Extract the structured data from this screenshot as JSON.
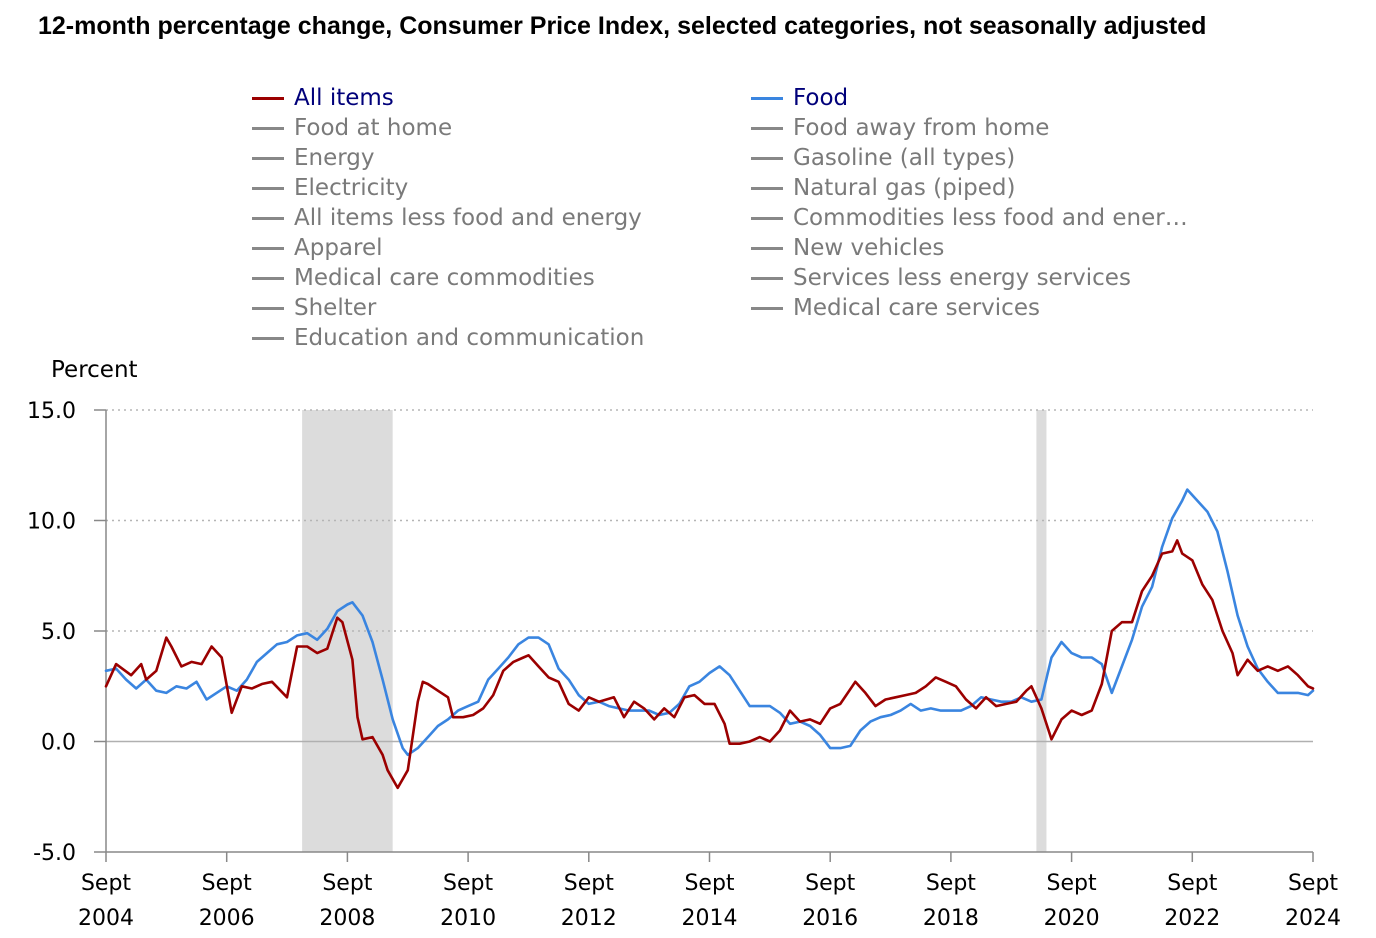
{
  "title": "12-month percentage change, Consumer Price Index, selected categories, not seasonally adjusted",
  "legend": {
    "left": [
      {
        "label": "All items",
        "color": "#9b0000",
        "active": true
      },
      {
        "label": "Food at home",
        "color": "#888888",
        "active": false
      },
      {
        "label": "Energy",
        "color": "#888888",
        "active": false
      },
      {
        "label": "Electricity",
        "color": "#888888",
        "active": false
      },
      {
        "label": "All items less food and energy",
        "color": "#888888",
        "active": false
      },
      {
        "label": "Apparel",
        "color": "#888888",
        "active": false
      },
      {
        "label": "Medical care commodities",
        "color": "#888888",
        "active": false
      },
      {
        "label": "Shelter",
        "color": "#888888",
        "active": false
      },
      {
        "label": "Education and communication",
        "color": "#888888",
        "active": false
      }
    ],
    "right": [
      {
        "label": "Food",
        "color": "#3a85e0",
        "active": true
      },
      {
        "label": "Food away from home",
        "color": "#888888",
        "active": false
      },
      {
        "label": "Gasoline (all types)",
        "color": "#888888",
        "active": false
      },
      {
        "label": "Natural gas (piped)",
        "color": "#888888",
        "active": false
      },
      {
        "label": "Commodities less food and ener…",
        "color": "#888888",
        "active": false
      },
      {
        "label": "New vehicles",
        "color": "#888888",
        "active": false
      },
      {
        "label": "Services less energy services",
        "color": "#888888",
        "active": false
      },
      {
        "label": "Medical care services",
        "color": "#888888",
        "active": false
      }
    ]
  },
  "chart_data": {
    "type": "line",
    "title": "12-month percentage change, Consumer Price Index, selected categories, not seasonally adjusted",
    "ylabel": "Percent",
    "xlabel": "",
    "ylim": [
      -5.0,
      15.0
    ],
    "y_ticks": [
      "15.0",
      "10.0",
      "5.0",
      "0.0",
      "-5.0"
    ],
    "y_tick_values": [
      15,
      10,
      5,
      0,
      -5
    ],
    "x_range": [
      "2004-09",
      "2024-09"
    ],
    "x_ticks": [
      {
        "line1": "Sept",
        "line2": "2004",
        "year": 2004
      },
      {
        "line1": "Sept",
        "line2": "2006",
        "year": 2006
      },
      {
        "line1": "Sept",
        "line2": "2008",
        "year": 2008
      },
      {
        "line1": "Sept",
        "line2": "2010",
        "year": 2010
      },
      {
        "line1": "Sept",
        "line2": "2012",
        "year": 2012
      },
      {
        "line1": "Sept",
        "line2": "2014",
        "year": 2014
      },
      {
        "line1": "Sept",
        "line2": "2016",
        "year": 2016
      },
      {
        "line1": "Sept",
        "line2": "2018",
        "year": 2018
      },
      {
        "line1": "Sept",
        "line2": "2020",
        "year": 2020
      },
      {
        "line1": "Sept",
        "line2": "2022",
        "year": 2022
      },
      {
        "line1": "Sept",
        "line2": "2024",
        "year": 2024
      }
    ],
    "recessions": [
      {
        "start": "2007-12",
        "end": "2009-06"
      },
      {
        "start": "2020-02",
        "end": "2020-04"
      }
    ],
    "grid": "horizontal dotted",
    "legend_placement": "top",
    "series": [
      {
        "name": "All items",
        "color": "#9b0000",
        "points": [
          [
            "2004-09",
            2.5
          ],
          [
            "2004-11",
            3.5
          ],
          [
            "2005-02",
            3.0
          ],
          [
            "2005-04",
            3.5
          ],
          [
            "2005-05",
            2.8
          ],
          [
            "2005-07",
            3.2
          ],
          [
            "2005-09",
            4.7
          ],
          [
            "2005-10",
            4.3
          ],
          [
            "2005-12",
            3.4
          ],
          [
            "2006-02",
            3.6
          ],
          [
            "2006-04",
            3.5
          ],
          [
            "2006-06",
            4.3
          ],
          [
            "2006-08",
            3.8
          ],
          [
            "2006-10",
            1.3
          ],
          [
            "2006-12",
            2.5
          ],
          [
            "2007-02",
            2.4
          ],
          [
            "2007-04",
            2.6
          ],
          [
            "2007-06",
            2.7
          ],
          [
            "2007-09",
            2.0
          ],
          [
            "2007-11",
            4.3
          ],
          [
            "2008-01",
            4.3
          ],
          [
            "2008-03",
            4.0
          ],
          [
            "2008-05",
            4.2
          ],
          [
            "2008-07",
            5.6
          ],
          [
            "2008-08",
            5.4
          ],
          [
            "2008-10",
            3.7
          ],
          [
            "2008-11",
            1.1
          ],
          [
            "2008-12",
            0.1
          ],
          [
            "2009-02",
            0.2
          ],
          [
            "2009-04",
            -0.6
          ],
          [
            "2009-05",
            -1.3
          ],
          [
            "2009-07",
            -2.1
          ],
          [
            "2009-09",
            -1.3
          ],
          [
            "2009-11",
            1.8
          ],
          [
            "2009-12",
            2.7
          ],
          [
            "2010-01",
            2.6
          ],
          [
            "2010-03",
            2.3
          ],
          [
            "2010-05",
            2.0
          ],
          [
            "2010-06",
            1.1
          ],
          [
            "2010-08",
            1.1
          ],
          [
            "2010-10",
            1.2
          ],
          [
            "2010-12",
            1.5
          ],
          [
            "2011-02",
            2.1
          ],
          [
            "2011-04",
            3.2
          ],
          [
            "2011-06",
            3.6
          ],
          [
            "2011-08",
            3.8
          ],
          [
            "2011-09",
            3.9
          ],
          [
            "2011-11",
            3.4
          ],
          [
            "2012-01",
            2.9
          ],
          [
            "2012-03",
            2.7
          ],
          [
            "2012-05",
            1.7
          ],
          [
            "2012-07",
            1.4
          ],
          [
            "2012-09",
            2.0
          ],
          [
            "2012-11",
            1.8
          ],
          [
            "2013-02",
            2.0
          ],
          [
            "2013-04",
            1.1
          ],
          [
            "2013-06",
            1.8
          ],
          [
            "2013-08",
            1.5
          ],
          [
            "2013-10",
            1.0
          ],
          [
            "2013-12",
            1.5
          ],
          [
            "2014-02",
            1.1
          ],
          [
            "2014-04",
            2.0
          ],
          [
            "2014-06",
            2.1
          ],
          [
            "2014-08",
            1.7
          ],
          [
            "2014-10",
            1.7
          ],
          [
            "2014-12",
            0.8
          ],
          [
            "2015-01",
            -0.1
          ],
          [
            "2015-03",
            -0.1
          ],
          [
            "2015-05",
            0.0
          ],
          [
            "2015-07",
            0.2
          ],
          [
            "2015-09",
            0.0
          ],
          [
            "2015-11",
            0.5
          ],
          [
            "2016-01",
            1.4
          ],
          [
            "2016-03",
            0.9
          ],
          [
            "2016-05",
            1.0
          ],
          [
            "2016-07",
            0.8
          ],
          [
            "2016-09",
            1.5
          ],
          [
            "2016-11",
            1.7
          ],
          [
            "2017-02",
            2.7
          ],
          [
            "2017-04",
            2.2
          ],
          [
            "2017-06",
            1.6
          ],
          [
            "2017-08",
            1.9
          ],
          [
            "2017-10",
            2.0
          ],
          [
            "2017-12",
            2.1
          ],
          [
            "2018-02",
            2.2
          ],
          [
            "2018-04",
            2.5
          ],
          [
            "2018-06",
            2.9
          ],
          [
            "2018-08",
            2.7
          ],
          [
            "2018-10",
            2.5
          ],
          [
            "2018-12",
            1.9
          ],
          [
            "2019-02",
            1.5
          ],
          [
            "2019-04",
            2.0
          ],
          [
            "2019-06",
            1.6
          ],
          [
            "2019-08",
            1.7
          ],
          [
            "2019-10",
            1.8
          ],
          [
            "2019-12",
            2.3
          ],
          [
            "2020-01",
            2.5
          ],
          [
            "2020-03",
            1.5
          ],
          [
            "2020-05",
            0.1
          ],
          [
            "2020-07",
            1.0
          ],
          [
            "2020-09",
            1.4
          ],
          [
            "2020-11",
            1.2
          ],
          [
            "2021-01",
            1.4
          ],
          [
            "2021-03",
            2.6
          ],
          [
            "2021-05",
            5.0
          ],
          [
            "2021-07",
            5.4
          ],
          [
            "2021-09",
            5.4
          ],
          [
            "2021-11",
            6.8
          ],
          [
            "2022-01",
            7.5
          ],
          [
            "2022-03",
            8.5
          ],
          [
            "2022-05",
            8.6
          ],
          [
            "2022-06",
            9.1
          ],
          [
            "2022-07",
            8.5
          ],
          [
            "2022-09",
            8.2
          ],
          [
            "2022-11",
            7.1
          ],
          [
            "2023-01",
            6.4
          ],
          [
            "2023-03",
            5.0
          ],
          [
            "2023-05",
            4.0
          ],
          [
            "2023-06",
            3.0
          ],
          [
            "2023-08",
            3.7
          ],
          [
            "2023-10",
            3.2
          ],
          [
            "2023-12",
            3.4
          ],
          [
            "2024-02",
            3.2
          ],
          [
            "2024-04",
            3.4
          ],
          [
            "2024-06",
            3.0
          ],
          [
            "2024-08",
            2.5
          ],
          [
            "2024-09",
            2.4
          ]
        ]
      },
      {
        "name": "Food",
        "color": "#3a85e0",
        "points": [
          [
            "2004-09",
            3.2
          ],
          [
            "2004-11",
            3.3
          ],
          [
            "2005-01",
            2.8
          ],
          [
            "2005-03",
            2.4
          ],
          [
            "2005-05",
            2.8
          ],
          [
            "2005-07",
            2.3
          ],
          [
            "2005-09",
            2.2
          ],
          [
            "2005-11",
            2.5
          ],
          [
            "2006-01",
            2.4
          ],
          [
            "2006-03",
            2.7
          ],
          [
            "2006-05",
            1.9
          ],
          [
            "2006-07",
            2.2
          ],
          [
            "2006-09",
            2.5
          ],
          [
            "2006-11",
            2.3
          ],
          [
            "2007-01",
            2.8
          ],
          [
            "2007-03",
            3.6
          ],
          [
            "2007-05",
            4.0
          ],
          [
            "2007-07",
            4.4
          ],
          [
            "2007-09",
            4.5
          ],
          [
            "2007-11",
            4.8
          ],
          [
            "2008-01",
            4.9
          ],
          [
            "2008-03",
            4.6
          ],
          [
            "2008-05",
            5.1
          ],
          [
            "2008-07",
            5.9
          ],
          [
            "2008-09",
            6.2
          ],
          [
            "2008-10",
            6.3
          ],
          [
            "2008-12",
            5.7
          ],
          [
            "2009-02",
            4.5
          ],
          [
            "2009-04",
            2.8
          ],
          [
            "2009-06",
            1.0
          ],
          [
            "2009-08",
            -0.3
          ],
          [
            "2009-09",
            -0.6
          ],
          [
            "2009-11",
            -0.3
          ],
          [
            "2010-01",
            0.2
          ],
          [
            "2010-03",
            0.7
          ],
          [
            "2010-05",
            1.0
          ],
          [
            "2010-07",
            1.4
          ],
          [
            "2010-09",
            1.6
          ],
          [
            "2010-11",
            1.8
          ],
          [
            "2011-01",
            2.8
          ],
          [
            "2011-03",
            3.3
          ],
          [
            "2011-05",
            3.8
          ],
          [
            "2011-07",
            4.4
          ],
          [
            "2011-09",
            4.7
          ],
          [
            "2011-11",
            4.7
          ],
          [
            "2012-01",
            4.4
          ],
          [
            "2012-03",
            3.3
          ],
          [
            "2012-05",
            2.8
          ],
          [
            "2012-07",
            2.1
          ],
          [
            "2012-09",
            1.7
          ],
          [
            "2012-11",
            1.8
          ],
          [
            "2013-01",
            1.6
          ],
          [
            "2013-03",
            1.5
          ],
          [
            "2013-05",
            1.4
          ],
          [
            "2013-07",
            1.4
          ],
          [
            "2013-09",
            1.4
          ],
          [
            "2013-11",
            1.2
          ],
          [
            "2014-01",
            1.3
          ],
          [
            "2014-03",
            1.7
          ],
          [
            "2014-05",
            2.5
          ],
          [
            "2014-07",
            2.7
          ],
          [
            "2014-09",
            3.1
          ],
          [
            "2014-11",
            3.4
          ],
          [
            "2015-01",
            3.0
          ],
          [
            "2015-03",
            2.3
          ],
          [
            "2015-05",
            1.6
          ],
          [
            "2015-07",
            1.6
          ],
          [
            "2015-09",
            1.6
          ],
          [
            "2015-11",
            1.3
          ],
          [
            "2016-01",
            0.8
          ],
          [
            "2016-03",
            0.9
          ],
          [
            "2016-05",
            0.7
          ],
          [
            "2016-07",
            0.3
          ],
          [
            "2016-09",
            -0.3
          ],
          [
            "2016-11",
            -0.3
          ],
          [
            "2017-01",
            -0.2
          ],
          [
            "2017-03",
            0.5
          ],
          [
            "2017-05",
            0.9
          ],
          [
            "2017-07",
            1.1
          ],
          [
            "2017-09",
            1.2
          ],
          [
            "2017-11",
            1.4
          ],
          [
            "2018-01",
            1.7
          ],
          [
            "2018-03",
            1.4
          ],
          [
            "2018-05",
            1.5
          ],
          [
            "2018-07",
            1.4
          ],
          [
            "2018-09",
            1.4
          ],
          [
            "2018-11",
            1.4
          ],
          [
            "2019-01",
            1.6
          ],
          [
            "2019-03",
            2.0
          ],
          [
            "2019-05",
            1.9
          ],
          [
            "2019-07",
            1.8
          ],
          [
            "2019-09",
            1.8
          ],
          [
            "2019-11",
            2.0
          ],
          [
            "2020-01",
            1.8
          ],
          [
            "2020-03",
            1.9
          ],
          [
            "2020-05",
            3.8
          ],
          [
            "2020-07",
            4.5
          ],
          [
            "2020-09",
            4.0
          ],
          [
            "2020-11",
            3.8
          ],
          [
            "2021-01",
            3.8
          ],
          [
            "2021-03",
            3.5
          ],
          [
            "2021-05",
            2.2
          ],
          [
            "2021-07",
            3.4
          ],
          [
            "2021-09",
            4.6
          ],
          [
            "2021-11",
            6.1
          ],
          [
            "2022-01",
            7.0
          ],
          [
            "2022-03",
            8.8
          ],
          [
            "2022-05",
            10.1
          ],
          [
            "2022-07",
            10.9
          ],
          [
            "2022-08",
            11.4
          ],
          [
            "2022-10",
            10.9
          ],
          [
            "2022-12",
            10.4
          ],
          [
            "2023-02",
            9.5
          ],
          [
            "2023-04",
            7.7
          ],
          [
            "2023-06",
            5.7
          ],
          [
            "2023-08",
            4.3
          ],
          [
            "2023-10",
            3.3
          ],
          [
            "2023-12",
            2.7
          ],
          [
            "2024-02",
            2.2
          ],
          [
            "2024-04",
            2.2
          ],
          [
            "2024-06",
            2.2
          ],
          [
            "2024-08",
            2.1
          ],
          [
            "2024-09",
            2.3
          ]
        ]
      }
    ]
  }
}
